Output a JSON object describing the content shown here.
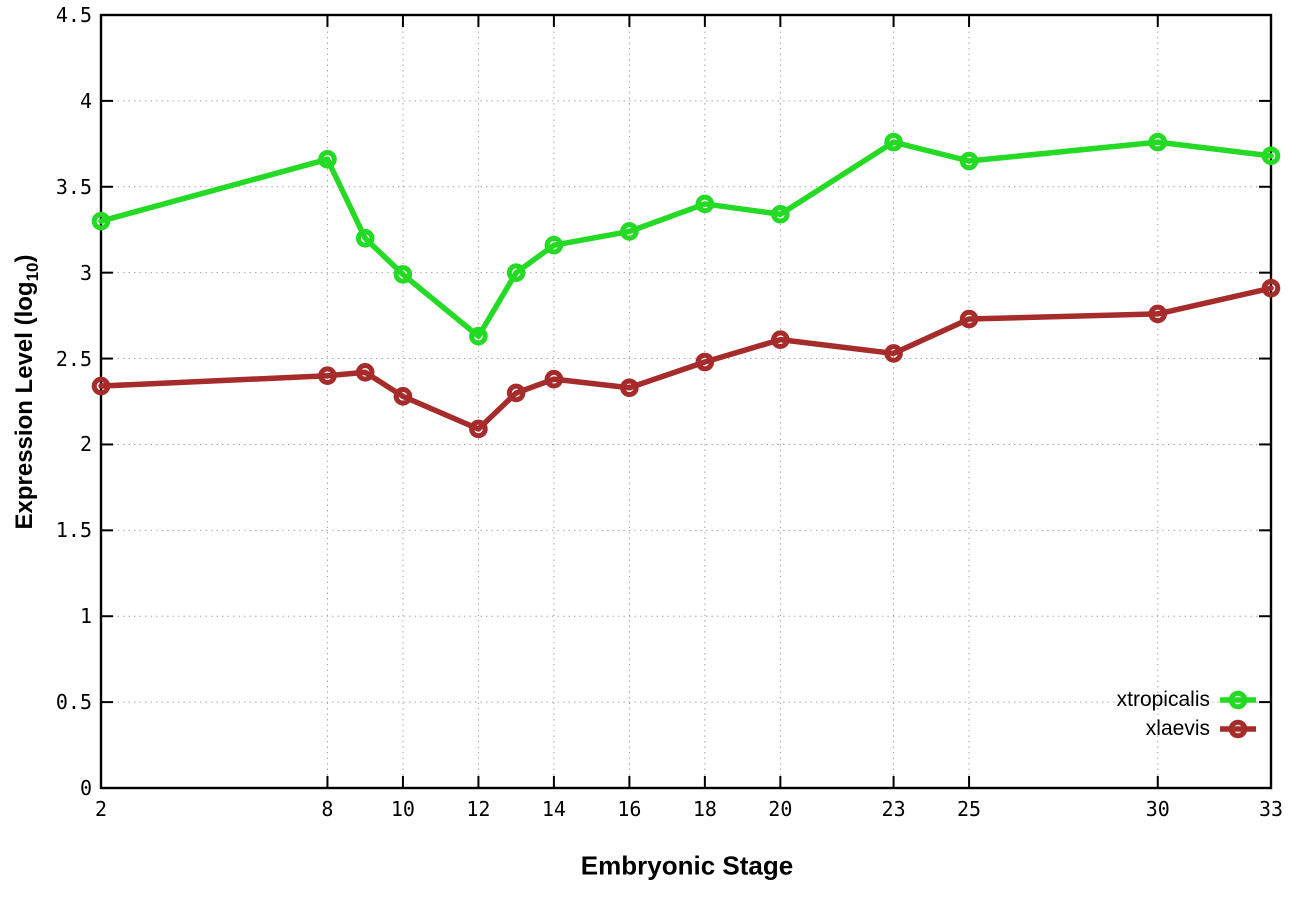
{
  "chart_data": {
    "type": "line",
    "title": "",
    "xlabel": "Embryonic Stage",
    "ylabel": "Expression Level (log10)",
    "ylabel_parts": {
      "main": "Expression Level (log",
      "sub": "10",
      "end": ")"
    },
    "x": [
      2,
      8,
      9,
      10,
      12,
      13,
      14,
      16,
      18,
      20,
      23,
      25,
      30,
      33
    ],
    "series": [
      {
        "name": "xtropicalis",
        "color": "#24da24",
        "values": [
          3.3,
          3.66,
          3.2,
          2.99,
          2.63,
          3.0,
          3.16,
          3.24,
          3.4,
          3.34,
          3.76,
          3.65,
          3.76,
          3.68
        ]
      },
      {
        "name": "xlaevis",
        "color": "#a62c2c",
        "values": [
          2.34,
          2.4,
          2.42,
          2.28,
          2.09,
          2.3,
          2.38,
          2.33,
          2.48,
          2.61,
          2.53,
          2.73,
          2.76,
          2.91
        ]
      }
    ],
    "xticks": {
      "values": [
        2,
        8,
        10,
        12,
        14,
        16,
        18,
        20,
        23,
        25,
        30,
        33
      ],
      "labels": [
        "2",
        "8",
        "10",
        "12",
        "14",
        "16",
        "18",
        "20",
        "23",
        "25",
        "30",
        "33"
      ]
    },
    "yticks": {
      "values": [
        0,
        0.5,
        1,
        1.5,
        2,
        2.5,
        3,
        3.5,
        4,
        4.5
      ],
      "labels": [
        "0",
        "0.5",
        "1",
        "1.5",
        "2",
        "2.5",
        "3",
        "3.5",
        "4",
        "4.5"
      ]
    },
    "xlim": [
      2,
      33
    ],
    "ylim": [
      0,
      4.5
    ],
    "grid": true,
    "grid_style": "dotted",
    "legend_position": "inside-bottom-right",
    "colors": {
      "axis": "#000000",
      "grid": "#a8a8a8",
      "background": "#ffffff"
    }
  }
}
